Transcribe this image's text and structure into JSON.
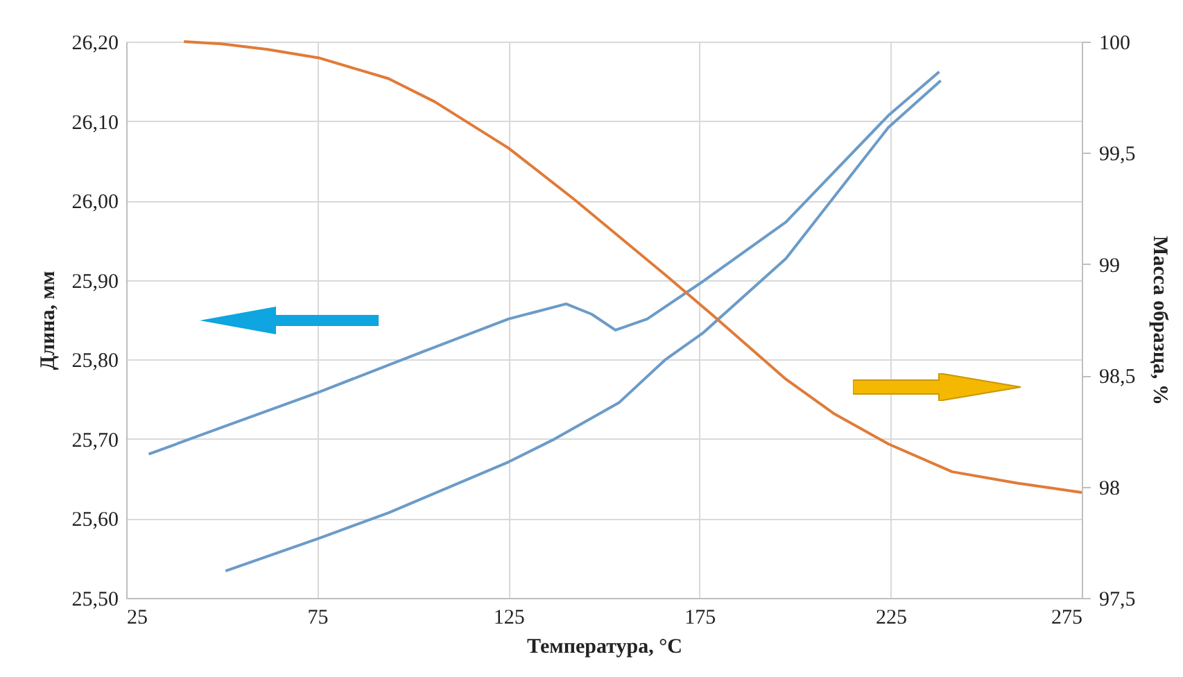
{
  "chart_data": {
    "type": "line",
    "xlabel": "Температура, °C",
    "ylabel": "Длина, мм",
    "y2label": "Масса образца, %",
    "xlim": [
      25,
      275
    ],
    "xticks": [
      25,
      75,
      125,
      175,
      225,
      275
    ],
    "ylim": [
      25.5,
      26.2
    ],
    "yticks": [
      {
        "value": 25.5,
        "label": "25,50"
      },
      {
        "value": 25.6,
        "label": "25,60"
      },
      {
        "value": 25.7,
        "label": "25,70"
      },
      {
        "value": 25.8,
        "label": "25,80"
      },
      {
        "value": 25.9,
        "label": "25,90"
      },
      {
        "value": 26.0,
        "label": "26,00"
      },
      {
        "value": 26.1,
        "label": "26,10"
      },
      {
        "value": 26.2,
        "label": "26,20"
      }
    ],
    "y2lim": [
      97.5,
      100
    ],
    "y2ticks": [
      {
        "value": 97.5,
        "label": "97,5"
      },
      98,
      {
        "value": 98.5,
        "label": "98,5"
      },
      99,
      {
        "value": 99.5,
        "label": "99,5"
      },
      100
    ],
    "grid": true,
    "legend": false,
    "marker": "none",
    "line_style": "solid",
    "series": [
      {
        "color": "#6b9bc8",
        "x": [
          30.9,
          52,
          75.4,
          100,
          125,
          140.1,
          146.8,
          153,
          161.3,
          175.8,
          197.6,
          224.4,
          237.7
        ],
        "values": [
          25.681,
          25.718,
          25.759,
          25.805,
          25.851,
          25.87,
          25.857,
          25.837,
          25.851,
          25.898,
          25.973,
          26.107,
          26.162
        ]
      },
      {
        "color": "#6b9bc8",
        "x": [
          238.1,
          224.4,
          197.6,
          175.8,
          166.1,
          154,
          137.1,
          125,
          93.6,
          75.4,
          51
        ],
        "values": [
          26.151,
          26.092,
          25.927,
          25.833,
          25.8,
          25.746,
          25.7,
          25.671,
          25.607,
          25.575,
          25.534
        ]
      },
      {
        "color": "#e07b39",
        "axis": "y2",
        "x": [
          40.1,
          50,
          62,
          75.4,
          93.6,
          105.7,
          125,
          142,
          166.1,
          178.2,
          197.6,
          210,
          224.4,
          241.1,
          258.1,
          275
        ],
        "values": [
          100,
          99.99,
          99.965,
          99.927,
          99.834,
          99.73,
          99.522,
          99.294,
          98.951,
          98.774,
          98.483,
          98.33,
          98.192,
          98.067,
          98.016,
          97.974
        ]
      }
    ]
  }
}
